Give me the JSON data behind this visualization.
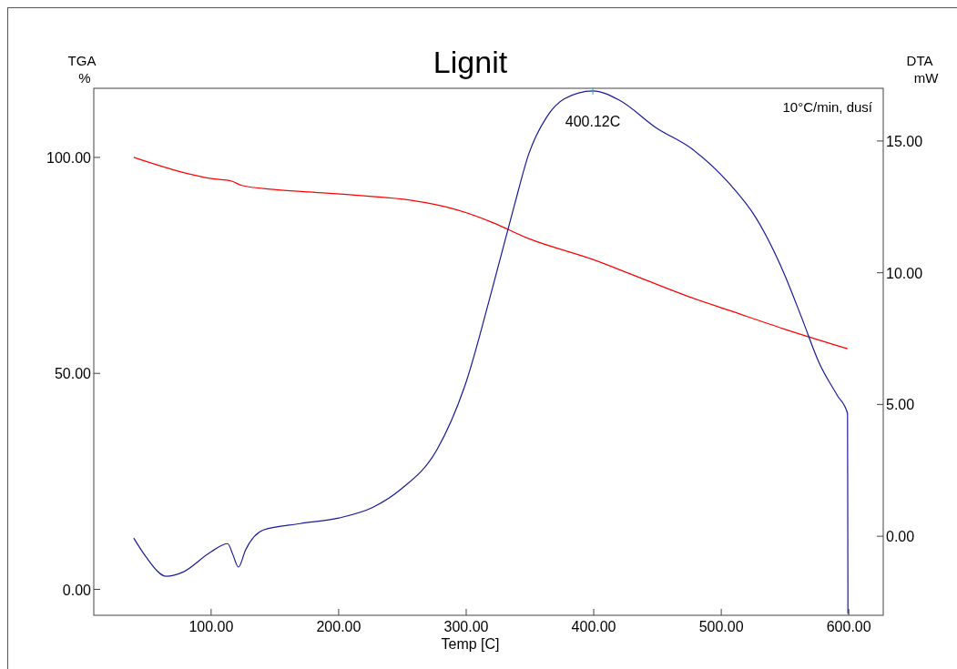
{
  "chart_data": {
    "type": "line",
    "title": "Lignit",
    "xlabel": "Temp [C]",
    "ylabel": "TGA %",
    "y2label": "DTA mW",
    "annotations": [
      "400.12C",
      "10°C/min, dusí"
    ],
    "xlim": [
      8,
      627
    ],
    "xticks": [
      {
        "value": 100,
        "label": "100.00"
      },
      {
        "value": 200,
        "label": "200.00"
      },
      {
        "value": 300,
        "label": "300.00"
      },
      {
        "value": 400,
        "label": "400.00"
      },
      {
        "value": 500,
        "label": "500.00"
      },
      {
        "value": 600,
        "label": "600.00"
      }
    ],
    "ylim": [
      -6,
      116
    ],
    "yticks": [
      {
        "value": 0,
        "label": "0.00"
      },
      {
        "value": 50,
        "label": "50.00"
      },
      {
        "value": 100,
        "label": "100.00"
      }
    ],
    "y2lim": [
      -3,
      17
    ],
    "y2ticks": [
      {
        "value": 0,
        "label": "0.00"
      },
      {
        "value": 5,
        "label": "5.00"
      },
      {
        "value": 10,
        "label": "10.00"
      },
      {
        "value": 15,
        "label": "15.00"
      }
    ],
    "series": [
      {
        "color": "#ff0000",
        "x": [
          39.3,
          77,
          100,
          116,
          124,
          149,
          177,
          220,
          256,
          291,
          320,
          349,
          399,
          434,
          477,
          506,
          549,
          599
        ],
        "values": [
          100.0,
          96.6,
          95.1,
          94.5,
          93.5,
          92.6,
          92.0,
          91.1,
          90.1,
          88.0,
          85.0,
          81.2,
          76.4,
          72.4,
          67.5,
          64.6,
          60.3,
          55.7
        ]
      },
      {
        "color": "#1a1a9a",
        "axis": "y2",
        "x": [
          39.3,
          48.6,
          65,
          77,
          100,
          113,
          117,
          121.4,
          127,
          141,
          170,
          200,
          227,
          249,
          277,
          300,
          320,
          338,
          349,
          363,
          377,
          399.3,
          420,
          449,
          477,
          506,
          527,
          549,
          563,
          577,
          591,
          599,
          599.3,
          599.3
        ],
        "values": [
          -0.07,
          -0.76,
          -1.52,
          -1.38,
          -0.59,
          -0.28,
          -0.69,
          -1.17,
          -0.52,
          0.24,
          0.48,
          0.69,
          1.1,
          1.79,
          3.28,
          5.86,
          9.31,
          12.6,
          14.5,
          15.9,
          16.6,
          16.9,
          16.55,
          15.5,
          14.7,
          13.4,
          12.1,
          10.0,
          8.3,
          6.55,
          5.34,
          4.66,
          -2.07,
          -2.95
        ]
      }
    ]
  }
}
